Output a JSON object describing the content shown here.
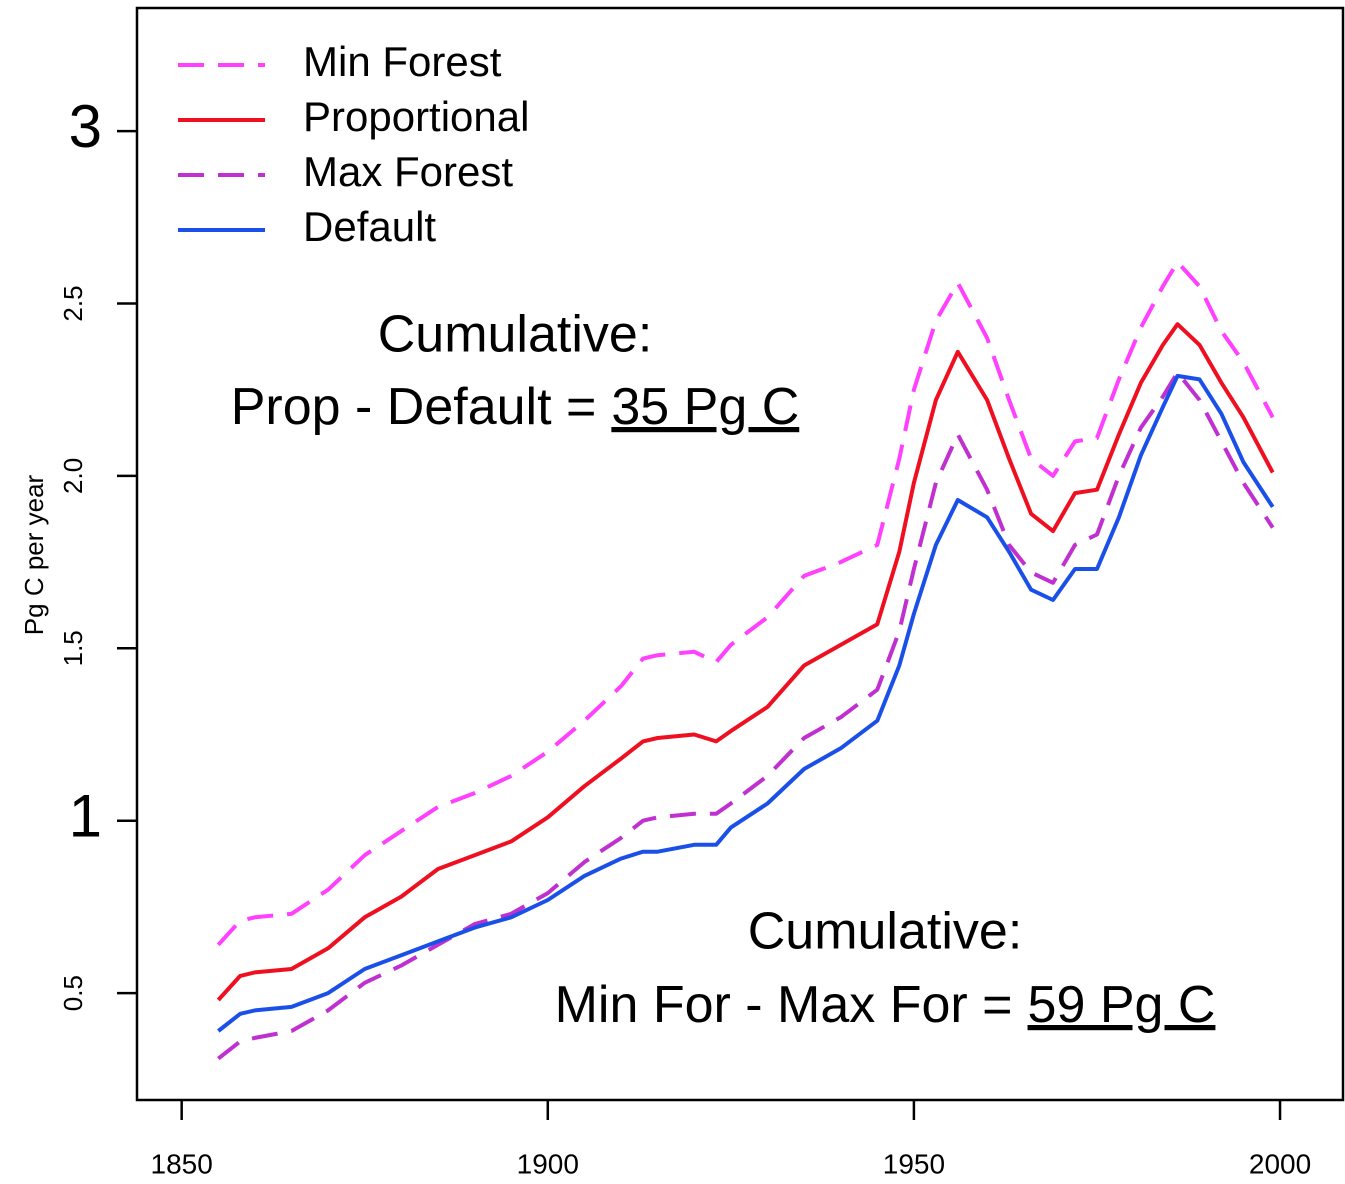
{
  "chart_data": {
    "type": "line",
    "y_label": "Pg C per year",
    "x": [
      1855,
      1858,
      1860,
      1865,
      1870,
      1875,
      1880,
      1885,
      1890,
      1895,
      1900,
      1905,
      1910,
      1913,
      1915,
      1920,
      1923,
      1925,
      1930,
      1935,
      1940,
      1945,
      1948,
      1950,
      1953,
      1956,
      1960,
      1963,
      1966,
      1969,
      1972,
      1975,
      1978,
      1981,
      1984,
      1986,
      1989,
      1992,
      1995,
      1999
    ],
    "series": [
      {
        "name": "Min Forest",
        "color": "#ff40ff",
        "dashed": true,
        "values": [
          0.64,
          0.71,
          0.72,
          0.73,
          0.8,
          0.9,
          0.97,
          1.04,
          1.08,
          1.13,
          1.2,
          1.29,
          1.39,
          1.47,
          1.48,
          1.49,
          1.46,
          1.51,
          1.59,
          1.71,
          1.75,
          1.8,
          2.05,
          2.25,
          2.45,
          2.56,
          2.4,
          2.22,
          2.05,
          2.0,
          2.1,
          2.11,
          2.28,
          2.43,
          2.55,
          2.62,
          2.55,
          2.42,
          2.33,
          2.17
        ]
      },
      {
        "name": "Proportional",
        "color": "#ee1020",
        "dashed": false,
        "values": [
          0.48,
          0.55,
          0.56,
          0.57,
          0.63,
          0.72,
          0.78,
          0.86,
          0.9,
          0.94,
          1.01,
          1.1,
          1.18,
          1.23,
          1.24,
          1.25,
          1.23,
          1.26,
          1.33,
          1.45,
          1.51,
          1.57,
          1.78,
          1.98,
          2.22,
          2.36,
          2.22,
          2.05,
          1.89,
          1.84,
          1.95,
          1.96,
          2.12,
          2.27,
          2.38,
          2.44,
          2.38,
          2.27,
          2.17,
          2.01
        ]
      },
      {
        "name": "Max Forest",
        "color": "#c030d0",
        "dashed": true,
        "values": [
          0.31,
          0.36,
          0.37,
          0.39,
          0.45,
          0.53,
          0.58,
          0.64,
          0.7,
          0.73,
          0.79,
          0.88,
          0.95,
          1.0,
          1.01,
          1.02,
          1.02,
          1.05,
          1.13,
          1.24,
          1.3,
          1.38,
          1.55,
          1.73,
          1.98,
          2.12,
          1.96,
          1.8,
          1.72,
          1.69,
          1.8,
          1.83,
          2.0,
          2.14,
          2.23,
          2.3,
          2.22,
          2.1,
          1.98,
          1.85
        ]
      },
      {
        "name": "Default",
        "color": "#1a50e8",
        "dashed": false,
        "values": [
          0.39,
          0.44,
          0.45,
          0.46,
          0.5,
          0.57,
          0.61,
          0.65,
          0.69,
          0.72,
          0.77,
          0.84,
          0.89,
          0.91,
          0.91,
          0.93,
          0.93,
          0.98,
          1.05,
          1.15,
          1.21,
          1.29,
          1.45,
          1.6,
          1.8,
          1.93,
          1.88,
          1.78,
          1.67,
          1.64,
          1.73,
          1.73,
          1.88,
          2.06,
          2.2,
          2.29,
          2.28,
          2.18,
          2.04,
          1.91
        ]
      }
    ],
    "xlim": [
      1843.9,
      2008.6
    ],
    "ylim": [
      0.19,
      3.357
    ],
    "xticks": [
      1850,
      1900,
      1950,
      2000
    ],
    "yticks": [
      0.5,
      1,
      1.5,
      {
        "value": 2,
        "label": "2.0"
      },
      2.5,
      3
    ],
    "legend": "top-left",
    "annotations": [
      {
        "title": "Cumulative:",
        "text": "Prop - Default =",
        "value_text": "35 Pg C",
        "color": "#f03030"
      },
      {
        "title": "Cumulative:",
        "text": "Min For - Max For =",
        "value_text": "59 Pg C",
        "color": "#cc44cc"
      }
    ]
  }
}
